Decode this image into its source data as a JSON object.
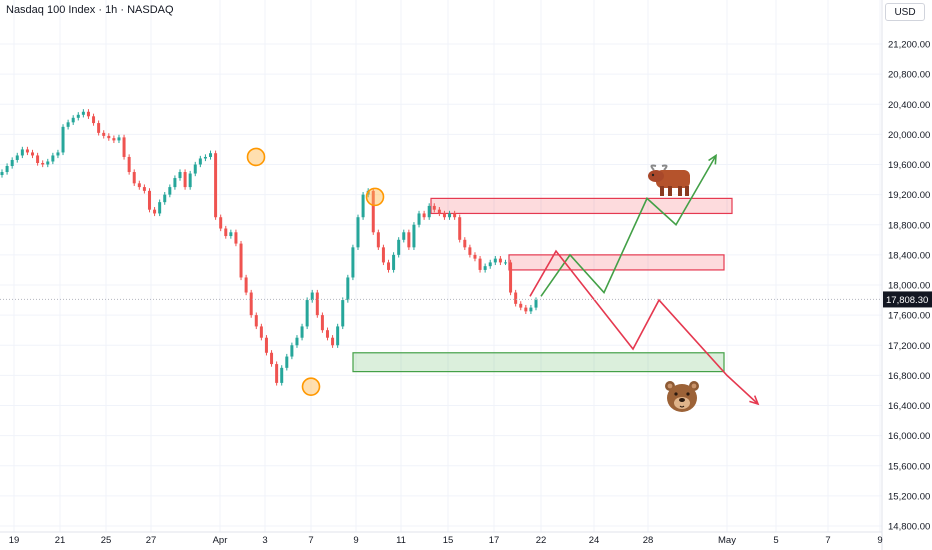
{
  "header": {
    "title": "Nasdaq 100 Index · 1h · NASDAQ"
  },
  "currency_button": "USD",
  "icons": [
    "bull-icon",
    "bear-icon"
  ],
  "colors": {
    "up": "#26a69a",
    "down": "#ef5350",
    "grid": "#f0f3fa",
    "price_label": "#131722",
    "resistance": "#e53950",
    "support": "#43a047",
    "pivot": "#ff9800"
  },
  "chart_data": {
    "type": "candlestick",
    "title": "Nasdaq 100 Index · 1h · NASDAQ",
    "ylim": [
      14600,
      21500
    ],
    "y_ticks": [
      14800,
      15200,
      15600,
      16000,
      16400,
      16800,
      17200,
      17600,
      18000,
      18400,
      18800,
      19200,
      19600,
      20000,
      20400,
      20800,
      21200
    ],
    "y_tick_labels": [
      "14,800.00",
      "15,200.00",
      "15,600.00",
      "16,000.00",
      "16,400.00",
      "16,800.00",
      "17,200.00",
      "17,600.00",
      "18,000.00",
      "18,400.00",
      "18,800.00",
      "19,200.00",
      "19,600.00",
      "20,000.00",
      "20,400.00",
      "20,800.00",
      "21,200.00"
    ],
    "x_tick_labels": [
      "19",
      "21",
      "25",
      "27",
      "Apr",
      "3",
      "7",
      "9",
      "11",
      "15",
      "17",
      "22",
      "24",
      "28",
      "May",
      "5",
      "7",
      "9"
    ],
    "last_price": 17808.3,
    "last_price_label": "17,808.30",
    "series": [
      {
        "name": "price",
        "values": [
          19500,
          19580,
          19660,
          19720,
          19800,
          19760,
          19720,
          19620,
          19600,
          19640,
          19720,
          19760,
          20100,
          20160,
          20220,
          20260,
          20300,
          20240,
          20150,
          20020,
          19980,
          19950,
          19920,
          19960,
          19700,
          19500,
          19350,
          19300,
          19250,
          19000,
          18950,
          19100,
          19200,
          19300,
          19420,
          19500,
          19300,
          19480,
          19600,
          19680,
          19700,
          19750,
          18900,
          18750,
          18650,
          18700,
          18550,
          18100,
          17900,
          17600,
          17450,
          17300,
          17100,
          16950,
          16700,
          16900,
          17050,
          17200,
          17300,
          17450,
          17800,
          17900,
          17600,
          17400,
          17300,
          17200,
          17450,
          17800,
          18100,
          18500,
          18900,
          19200,
          19250,
          18700,
          18500,
          18300,
          18200,
          18400,
          18600,
          18700,
          18500,
          18800,
          18950,
          18900,
          19050,
          19000,
          18950,
          18900,
          18950,
          18900,
          18600,
          18500,
          18400,
          18350,
          18200,
          18250,
          18300,
          18350,
          18300,
          18300,
          17900,
          17750,
          17700,
          17650,
          17700,
          17800
        ]
      }
    ],
    "annotations": {
      "resistance_zones": [
        {
          "from": 19150,
          "to": 18950
        },
        {
          "from": 18400,
          "to": 18200
        }
      ],
      "support_zone": {
        "from": 17100,
        "to": 16850
      },
      "pivot_markers": [
        19700,
        16650,
        19170
      ],
      "bullish_path": [
        17850,
        18400,
        17900,
        19150,
        18800,
        19720
      ],
      "bearish_path": [
        17850,
        18450,
        17150,
        17800,
        16800,
        16420
      ]
    }
  }
}
